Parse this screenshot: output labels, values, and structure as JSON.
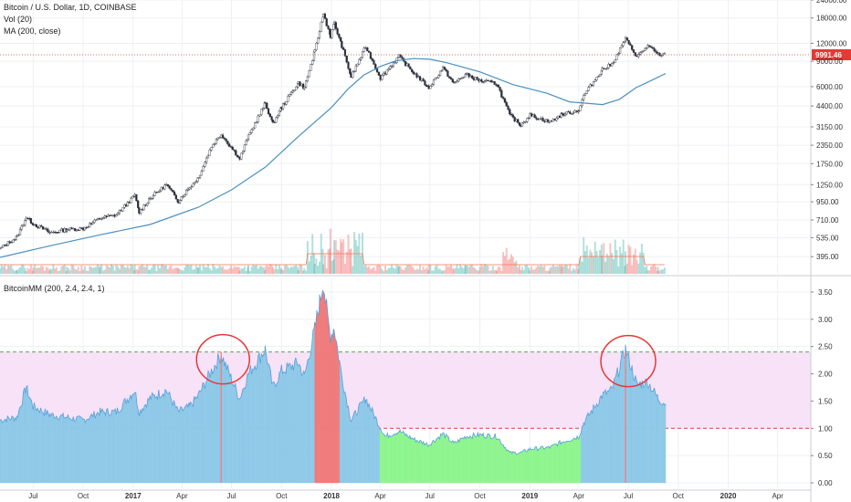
{
  "header": {
    "symbol_title": "Bitcoin / U.S. Dollar, 1D, COINBASE",
    "vol_label": "Vol (20)",
    "ma_label": "MA (200, close)",
    "indicator_label": "BitcoinMM (200, 2.4, 2.4, 1)"
  },
  "colors": {
    "ma_line": "#4a90c0",
    "price_line": "#e53935",
    "up_candle": "#26a69a",
    "down_candle": "#ef5350",
    "indicator_blue": "#8ec9e8",
    "indicator_blue_line": "#5aa0d8",
    "indicator_green": "#8ef58e",
    "indicator_red": "#f07a7a",
    "band_pink": "#f8e2f8",
    "annotation_circle": "#e53935"
  },
  "chart_data": [
    {
      "type": "candlestick",
      "title": "Bitcoin / U.S. Dollar, 1D, COINBASE",
      "y_scale": "log",
      "ylim": [
        300,
        24000
      ],
      "y_ticks": [
        395,
        535,
        710,
        950,
        1250,
        1750,
        2350,
        3150,
        4400,
        6000,
        9000,
        12000,
        18000,
        24000
      ],
      "current_price_label": "9991.46",
      "current_price": 9991.46,
      "x_ticks": [
        "Jul",
        "Oct",
        "2017",
        "Apr",
        "Jul",
        "Oct",
        "2018",
        "Apr",
        "Jul",
        "Oct",
        "2019",
        "Apr",
        "Jul",
        "Oct",
        "2020",
        "Apr"
      ],
      "x_tick_dates": [
        "2016-07-01",
        "2016-10-01",
        "2017-01-01",
        "2017-04-01",
        "2017-07-01",
        "2017-10-01",
        "2018-01-01",
        "2018-04-01",
        "2018-07-01",
        "2018-10-01",
        "2019-01-01",
        "2019-04-01",
        "2019-07-01",
        "2019-10-01",
        "2020-01-01",
        "2020-04-01"
      ],
      "x_range": [
        "2016-05-01",
        "2020-06-01"
      ],
      "price_series": {
        "name": "Bitcoin",
        "dates": [
          "2016-05-01",
          "2016-06-01",
          "2016-06-18",
          "2016-07-01",
          "2016-08-01",
          "2016-09-01",
          "2016-10-01",
          "2016-11-01",
          "2016-12-01",
          "2017-01-04",
          "2017-01-12",
          "2017-02-01",
          "2017-03-03",
          "2017-03-25",
          "2017-04-15",
          "2017-05-01",
          "2017-05-25",
          "2017-06-12",
          "2017-07-16",
          "2017-08-01",
          "2017-09-01",
          "2017-09-15",
          "2017-10-01",
          "2017-11-01",
          "2017-11-12",
          "2017-12-01",
          "2017-12-17",
          "2017-12-30",
          "2018-01-06",
          "2018-01-20",
          "2018-02-06",
          "2018-03-05",
          "2018-04-01",
          "2018-05-05",
          "2018-06-01",
          "2018-06-29",
          "2018-07-25",
          "2018-08-14",
          "2018-09-05",
          "2018-10-01",
          "2018-11-01",
          "2018-11-25",
          "2018-12-15",
          "2019-01-01",
          "2019-02-07",
          "2019-03-01",
          "2019-04-01",
          "2019-04-10",
          "2019-05-14",
          "2019-06-01",
          "2019-06-26",
          "2019-07-17",
          "2019-08-06",
          "2019-08-25",
          "2019-09-08"
        ],
        "values": [
          450,
          540,
          740,
          670,
          580,
          610,
          620,
          730,
          770,
          1050,
          800,
          1010,
          1250,
          960,
          1200,
          1400,
          2300,
          2800,
          1900,
          2700,
          4600,
          3300,
          4300,
          6400,
          5900,
          10500,
          19200,
          13500,
          16500,
          11500,
          7000,
          11400,
          6900,
          9700,
          7500,
          5900,
          8100,
          6300,
          7300,
          6600,
          6300,
          3800,
          3250,
          3800,
          3400,
          3850,
          4100,
          5200,
          7900,
          8600,
          12800,
          9700,
          11500,
          10000,
          9991.46
        ]
      },
      "ma_series": {
        "name": "MA (200, close)",
        "dates": [
          "2016-05-01",
          "2016-08-01",
          "2016-11-01",
          "2017-02-01",
          "2017-05-01",
          "2017-07-01",
          "2017-09-01",
          "2017-11-01",
          "2018-01-01",
          "2018-02-01",
          "2018-03-01",
          "2018-04-01",
          "2018-05-01",
          "2018-06-01",
          "2018-07-01",
          "2018-08-01",
          "2018-10-01",
          "2018-12-01",
          "2019-02-01",
          "2019-03-15",
          "2019-04-15",
          "2019-05-15",
          "2019-06-15",
          "2019-07-15",
          "2019-08-15",
          "2019-09-08"
        ],
        "values": [
          390,
          470,
          560,
          660,
          870,
          1150,
          1650,
          2700,
          4300,
          5800,
          7200,
          8300,
          9100,
          9400,
          9300,
          8800,
          7600,
          6200,
          5400,
          4700,
          4600,
          4500,
          4900,
          5900,
          6700,
          7400
        ]
      },
      "volume_ma": {
        "name": "Vol (20)"
      }
    },
    {
      "type": "area",
      "title": "BitcoinMM (200, 2.4, 2.4, 1)",
      "ylim": [
        -0.1,
        3.75
      ],
      "y_ticks": [
        0.0,
        0.5,
        1.0,
        1.5,
        2.0,
        2.5,
        3.0,
        3.5
      ],
      "y_tick_labels": [
        "0.00",
        "0.50",
        "1.00",
        "1.50",
        "2.00",
        "2.50",
        "3.00",
        "3.50"
      ],
      "upper_band": 2.4,
      "lower_band": 1.0,
      "series": {
        "name": "BitcoinMM",
        "dates": [
          "2016-05-01",
          "2016-06-01",
          "2016-06-18",
          "2016-07-01",
          "2016-08-01",
          "2016-09-01",
          "2016-10-01",
          "2016-11-01",
          "2016-12-01",
          "2017-01-04",
          "2017-01-12",
          "2017-02-01",
          "2017-03-03",
          "2017-03-25",
          "2017-04-15",
          "2017-05-01",
          "2017-05-25",
          "2017-06-12",
          "2017-07-16",
          "2017-08-01",
          "2017-09-01",
          "2017-09-15",
          "2017-10-01",
          "2017-11-01",
          "2017-11-12",
          "2017-12-01",
          "2017-12-10",
          "2017-12-17",
          "2017-12-24",
          "2017-12-30",
          "2018-01-06",
          "2018-01-20",
          "2018-02-06",
          "2018-03-05",
          "2018-03-25",
          "2018-04-10",
          "2018-05-05",
          "2018-06-01",
          "2018-06-29",
          "2018-07-25",
          "2018-08-14",
          "2018-09-05",
          "2018-10-01",
          "2018-11-01",
          "2018-11-25",
          "2018-12-15",
          "2019-01-01",
          "2019-02-07",
          "2019-03-01",
          "2019-04-01",
          "2019-04-10",
          "2019-05-14",
          "2019-06-01",
          "2019-06-26",
          "2019-07-17",
          "2019-08-06",
          "2019-08-25",
          "2019-09-08"
        ],
        "values": [
          1.15,
          1.2,
          1.75,
          1.4,
          1.25,
          1.2,
          1.15,
          1.3,
          1.3,
          1.7,
          1.3,
          1.55,
          1.7,
          1.3,
          1.4,
          1.6,
          2.05,
          2.35,
          1.55,
          2.0,
          2.45,
          1.75,
          2.05,
          2.2,
          1.95,
          2.8,
          3.3,
          3.7,
          3.1,
          2.7,
          2.85,
          1.95,
          1.15,
          1.55,
          1.15,
          0.85,
          0.95,
          0.8,
          0.7,
          0.9,
          0.72,
          0.85,
          0.88,
          0.85,
          0.55,
          0.55,
          0.62,
          0.65,
          0.75,
          0.85,
          1.1,
          1.6,
          1.7,
          2.45,
          1.8,
          1.85,
          1.55,
          1.45
        ]
      },
      "annotations": [
        "circle around 2017 mid-year peak",
        "circle around 2019 mid-year peak"
      ]
    }
  ]
}
